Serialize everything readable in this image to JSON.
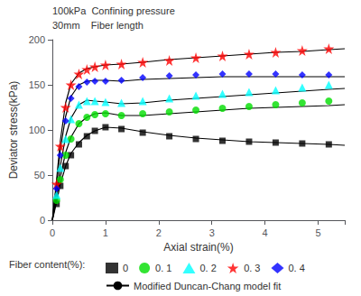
{
  "chart_data": {
    "type": "scatter",
    "annotations": [
      "100kPa  Confining pressure",
      "30mm    Fiber length"
    ],
    "xlabel": "Axial strain(%)",
    "ylabel": "Deviator stress(kPa)",
    "xlim": [
      0,
      5.5
    ],
    "ylim": [
      0,
      200
    ],
    "xticks": [
      0,
      1,
      2,
      3,
      4,
      5
    ],
    "yticks": [
      0,
      50,
      100,
      150,
      200
    ],
    "grid": false,
    "legend": "bottom",
    "legend_title": "Fiber content(%):",
    "series": [
      {
        "name": "0",
        "color": "black",
        "marker": "square",
        "x": [
          0.08,
          0.15,
          0.25,
          0.35,
          0.5,
          0.65,
          0.8,
          1.0,
          1.3,
          1.7,
          2.2,
          2.7,
          3.2,
          3.7,
          4.2,
          4.7,
          5.2
        ],
        "values": [
          18,
          38,
          60,
          72,
          84,
          93,
          99,
          103,
          101,
          97,
          93,
          90,
          88,
          87,
          86,
          85,
          84
        ]
      },
      {
        "name": "0. 1",
        "color": "#00dd00",
        "marker": "circle",
        "x": [
          0.08,
          0.15,
          0.25,
          0.35,
          0.5,
          0.65,
          0.8,
          1.0,
          1.3,
          1.7,
          2.2,
          2.7,
          3.2,
          3.7,
          4.2,
          4.7,
          5.2
        ],
        "values": [
          22,
          45,
          72,
          90,
          107,
          114,
          117,
          118,
          116,
          118,
          120,
          122,
          124,
          126,
          128,
          130,
          132
        ]
      },
      {
        "name": "0. 2",
        "color": "cyan",
        "marker": "triangle",
        "x": [
          0.08,
          0.15,
          0.25,
          0.35,
          0.5,
          0.65,
          0.8,
          1.0,
          1.3,
          1.7,
          2.2,
          2.7,
          3.2,
          3.7,
          4.2,
          4.7,
          5.2
        ],
        "values": [
          28,
          58,
          90,
          112,
          128,
          132,
          132,
          131,
          130,
          132,
          135,
          138,
          140,
          142,
          144,
          147,
          150
        ]
      },
      {
        "name": "0. 3",
        "color": "red",
        "marker": "star",
        "x": [
          0.08,
          0.15,
          0.25,
          0.35,
          0.5,
          0.65,
          0.8,
          1.0,
          1.3,
          1.7,
          2.2,
          2.7,
          3.2,
          3.7,
          4.2,
          4.7,
          5.2
        ],
        "values": [
          40,
          82,
          125,
          150,
          162,
          167,
          170,
          172,
          173,
          175,
          177,
          180,
          182,
          184,
          186,
          188,
          190
        ]
      },
      {
        "name": "0. 4",
        "color": "blue",
        "marker": "diamond",
        "x": [
          0.08,
          0.15,
          0.25,
          0.35,
          0.5,
          0.65,
          0.8,
          1.0,
          1.3,
          1.7,
          2.2,
          2.7,
          3.2,
          3.7,
          4.2,
          4.7,
          5.2
        ],
        "values": [
          35,
          72,
          110,
          135,
          148,
          153,
          154,
          154,
          155,
          158,
          160,
          161,
          162,
          162,
          162,
          161,
          161
        ]
      }
    ],
    "fit": {
      "name": "Modified Duncan-Chang model fit",
      "type": "line",
      "color": "black",
      "line_style": "solid",
      "curves": [
        {
          "x": [
            0.0,
            0.04,
            0.08,
            0.15,
            0.25,
            0.35,
            0.5,
            0.65,
            0.8,
            1.0,
            1.3,
            1.7,
            2.2,
            2.7,
            3.2,
            3.7,
            4.2,
            4.7,
            5.2,
            5.5
          ],
          "values": [
            0,
            10,
            20,
            40,
            60,
            74,
            86,
            94,
            99,
            103,
            102,
            98,
            94,
            91,
            89,
            87,
            86,
            85,
            84,
            83
          ]
        },
        {
          "x": [
            0.0,
            0.04,
            0.08,
            0.15,
            0.25,
            0.35,
            0.5,
            0.65,
            0.8,
            1.0,
            1.3,
            1.7,
            2.2,
            2.7,
            3.2,
            3.7,
            4.2,
            4.7,
            5.2,
            5.5
          ],
          "values": [
            0,
            12,
            24,
            48,
            75,
            92,
            107,
            114,
            118,
            119,
            116,
            116,
            118,
            120,
            122,
            124,
            125,
            126,
            127,
            128
          ]
        },
        {
          "x": [
            0.0,
            0.04,
            0.08,
            0.15,
            0.25,
            0.35,
            0.5,
            0.65,
            0.8,
            1.0,
            1.3,
            1.7,
            2.2,
            2.7,
            3.2,
            3.7,
            4.2,
            4.7,
            5.2,
            5.5
          ],
          "values": [
            0,
            15,
            30,
            60,
            93,
            113,
            128,
            133,
            132,
            131,
            129,
            130,
            133,
            135,
            137,
            139,
            141,
            143,
            145,
            146
          ]
        },
        {
          "x": [
            0.0,
            0.04,
            0.08,
            0.15,
            0.25,
            0.35,
            0.5,
            0.65,
            0.8,
            1.0,
            1.3,
            1.7,
            2.2,
            2.7,
            3.2,
            3.7,
            4.2,
            4.7,
            5.2,
            5.5
          ],
          "values": [
            0,
            22,
            45,
            88,
            130,
            151,
            163,
            168,
            170,
            172,
            173,
            175,
            178,
            180,
            182,
            184,
            186,
            187,
            189,
            190
          ]
        },
        {
          "x": [
            0.0,
            0.04,
            0.08,
            0.15,
            0.25,
            0.35,
            0.5,
            0.65,
            0.8,
            1.0,
            1.3,
            1.7,
            2.2,
            2.7,
            3.2,
            3.7,
            4.2,
            4.7,
            5.2,
            5.5
          ],
          "values": [
            0,
            20,
            40,
            78,
            115,
            137,
            150,
            154,
            155,
            155,
            154,
            156,
            157,
            158,
            159,
            159,
            159,
            159,
            159,
            159
          ]
        }
      ]
    }
  }
}
